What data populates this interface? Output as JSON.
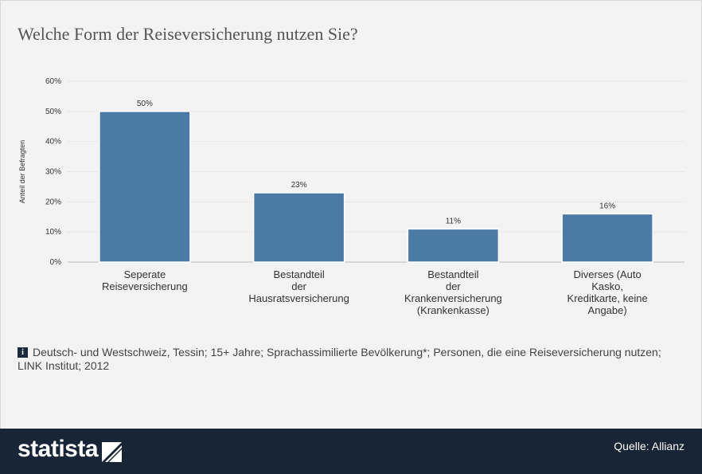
{
  "title": "Welche Form der Reiseversicherung nutzen Sie?",
  "chart_data": {
    "type": "bar",
    "ylabel": "Anteil der Befragten",
    "ylim": [
      0,
      60
    ],
    "yticks": [
      "0%",
      "10%",
      "20%",
      "30%",
      "40%",
      "50%",
      "60%"
    ],
    "yticks_values": [
      0,
      10,
      20,
      30,
      40,
      50,
      60
    ],
    "categories": [
      [
        "Seperate",
        "Reiseversicherung"
      ],
      [
        "Bestandteil",
        "der",
        "Hausratsversicherung"
      ],
      [
        "Bestandteil",
        "der",
        "Krankenversicherung",
        "(Krankenkasse)"
      ],
      [
        "Diverses (Auto",
        "Kasko,",
        "Kreditkarte, keine",
        "Angabe)"
      ]
    ],
    "values": [
      50,
      23,
      11,
      16
    ],
    "data_labels": [
      "50%",
      "23%",
      "11%",
      "16%"
    ],
    "bar_color": "#4a7aa5",
    "grid": true
  },
  "footnote": {
    "icon": "info-icon",
    "text": "Deutsch- und Westschweiz, Tessin; 15+ Jahre; Sprachassimilierte Bevölkerung*; Personen, die eine Reiseversicherung nutzen; LINK Institut; 2012"
  },
  "footer": {
    "logo": "statista",
    "source": "Quelle: Allianz",
    "background": "#172536"
  }
}
